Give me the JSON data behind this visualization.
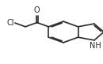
{
  "bg_color": "#ffffff",
  "line_color": "#2a2a2a",
  "line_width": 1.2,
  "text_color": "#2a2a2a",
  "font_size": 7.0,
  "Cl_label": "Cl",
  "O_label": "O",
  "NH_label": "NH"
}
